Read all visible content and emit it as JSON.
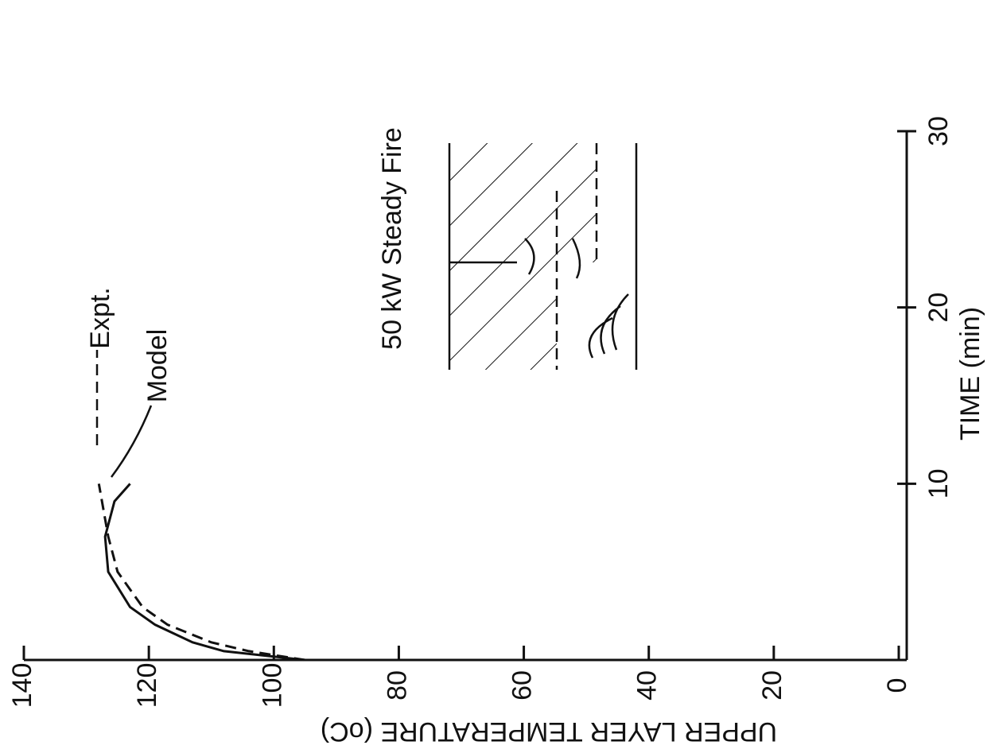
{
  "chart_data": {
    "type": "line",
    "annotation": "50 kW Steady Fire",
    "x_label": "TIME (min)",
    "y_label": "UPPER LAYER TEMPERATURE (oC)",
    "x": [
      0,
      0.5,
      1,
      2,
      3,
      5,
      7,
      9,
      10
    ],
    "series": [
      {
        "name": "Model",
        "color": "#111111",
        "dash": false,
        "values": [
          95,
          108,
          113,
          119,
          123,
          126.5,
          127,
          125.5,
          123
        ]
      },
      {
        "name": "Expt.",
        "color": "#111111",
        "dash": true,
        "values": [
          95,
          104,
          110,
          117,
          121,
          125,
          126.5,
          127.5,
          128
        ]
      }
    ],
    "xlim": [
      0,
      30
    ],
    "xticks": [
      10,
      20,
      30
    ],
    "ylim": [
      0,
      140
    ],
    "yticks": [
      0,
      20,
      40,
      60,
      80,
      100,
      120,
      140
    ]
  }
}
